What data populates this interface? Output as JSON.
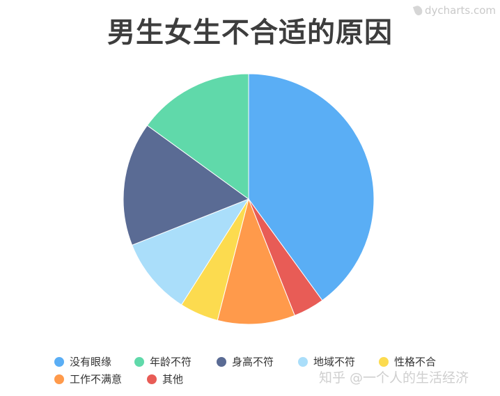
{
  "chart_data": {
    "type": "pie",
    "title": "男生女生不合适的原因",
    "legend_position": "bottom",
    "slices": [
      {
        "name": "没有眼缘",
        "value": 40,
        "color": "#5aaef5"
      },
      {
        "name": "其他",
        "value": 4,
        "color": "#e85c56"
      },
      {
        "name": "工作不满意",
        "value": 10,
        "color": "#ff9a4b"
      },
      {
        "name": "性格不合",
        "value": 5,
        "color": "#fcdb4f"
      },
      {
        "name": "地域不符",
        "value": 10,
        "color": "#aadefa"
      },
      {
        "name": "身高不符",
        "value": 16,
        "color": "#5a6b94"
      },
      {
        "name": "年龄不符",
        "value": 15,
        "color": "#60d9aa"
      }
    ],
    "legend": [
      "没有眼缘",
      "年龄不符",
      "身高不符",
      "地域不符",
      "性格不合",
      "工作不满意",
      "其他"
    ]
  },
  "logo_text": "dycharts.com",
  "watermark": "知乎 @一个人的生活经济"
}
